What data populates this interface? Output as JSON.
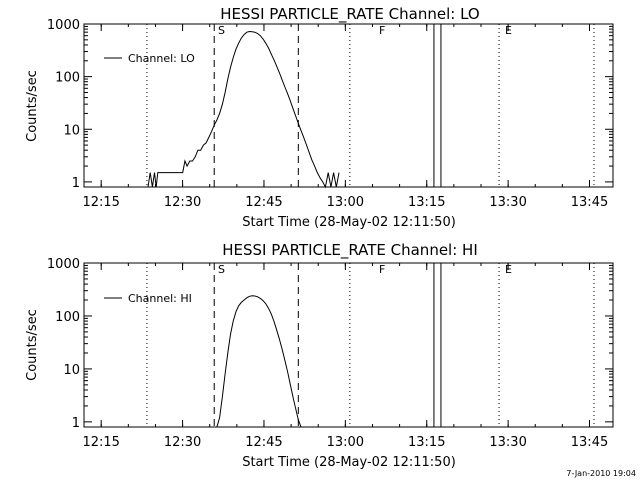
{
  "chart_data": [
    {
      "type": "line",
      "title": "HESSI PARTICLE_RATE Channel: LO",
      "xlabel": "Start Time (28-May-02 12:11:50)",
      "ylabel": "Counts/sec",
      "x_tick_labels": [
        "12:15",
        "12:30",
        "12:45",
        "13:00",
        "13:15",
        "13:30",
        "13:45"
      ],
      "x_tick_minutes": [
        3.17,
        18.17,
        33.17,
        48.17,
        63.17,
        78.17,
        93.17
      ],
      "xlim_minutes": [
        0,
        97.5
      ],
      "y_scale": "log",
      "ylim": [
        0.8,
        1000
      ],
      "y_ticks": [
        1,
        10,
        100,
        1000
      ],
      "y_tick_labels": [
        "1",
        "10",
        "100",
        "1000"
      ],
      "legend": "top-left",
      "series": [
        {
          "name": "Channel: LO",
          "x_minutes": [
            11.8,
            12.2,
            12.6,
            13.0,
            13.3,
            13.6,
            14.0,
            14.4,
            14.8,
            15.2,
            15.6,
            16.0,
            17.0,
            18.2,
            18.6,
            19.0,
            19.5,
            20.0,
            20.5,
            21.0,
            21.5,
            22.0,
            22.5,
            23.0,
            23.5,
            24.0,
            24.5,
            25.0,
            25.5,
            26.0,
            26.5,
            27.0,
            27.5,
            28.0,
            28.5,
            29.0,
            29.5,
            30.0,
            30.5,
            31.0,
            31.5,
            32.0,
            32.5,
            33.0,
            33.5,
            34.0,
            34.5,
            35.0,
            35.5,
            36.0,
            36.5,
            37.0,
            37.5,
            38.0,
            38.5,
            39.0,
            39.5,
            40.0,
            40.5,
            41.0,
            41.5,
            42.0,
            42.5,
            43.0,
            43.5,
            44.0,
            44.5,
            45.0,
            45.5,
            46.0,
            46.5,
            47.0
          ],
          "values": [
            0.8,
            1.5,
            0.8,
            1.5,
            0.8,
            1.5,
            1.5,
            1.5,
            1.5,
            1.5,
            1.5,
            1.5,
            1.5,
            1.5,
            2.5,
            2.0,
            2.5,
            2.5,
            3.0,
            4.0,
            4.0,
            5.0,
            5.5,
            7.0,
            9.0,
            12,
            15,
            20,
            30,
            50,
            90,
            150,
            230,
            330,
            430,
            540,
            630,
            700,
            720,
            710,
            700,
            660,
            600,
            520,
            430,
            350,
            270,
            210,
            160,
            120,
            88,
            65,
            48,
            35,
            25,
            18,
            13,
            9.5,
            7.0,
            5.0,
            3.6,
            2.6,
            2.0,
            1.5,
            1.2,
            1.0,
            0.8,
            1.5,
            0.8,
            1.5,
            0.8,
            1.5
          ]
        }
      ],
      "dashed_lines_minutes": [
        11.6,
        24.0,
        39.5,
        49.0,
        64.5,
        76.5,
        94.0
      ]
    },
    {
      "type": "line",
      "title": "HESSI PARTICLE_RATE Channel: HI",
      "xlabel": "Start Time (28-May-02 12:11:50)",
      "ylabel": "Counts/sec",
      "x_tick_labels": [
        "12:15",
        "12:30",
        "12:45",
        "13:00",
        "13:15",
        "13:30",
        "13:45"
      ],
      "x_tick_minutes": [
        3.17,
        18.17,
        33.17,
        48.17,
        63.17,
        78.17,
        93.17
      ],
      "xlim_minutes": [
        0,
        97.5
      ],
      "y_scale": "log",
      "ylim": [
        0.8,
        1000
      ],
      "y_ticks": [
        1,
        10,
        100,
        1000
      ],
      "y_tick_labels": [
        "1",
        "10",
        "100",
        "1000"
      ],
      "legend": "top-left",
      "series": [
        {
          "name": "Channel: HI",
          "x_minutes": [
            24.5,
            25.0,
            25.5,
            26.0,
            26.5,
            27.0,
            27.5,
            28.0,
            28.5,
            29.0,
            29.5,
            30.0,
            30.5,
            31.0,
            31.5,
            32.0,
            32.5,
            33.0,
            33.5,
            34.0,
            34.5,
            35.0,
            35.5,
            36.0,
            36.5,
            37.0,
            37.5,
            38.0,
            38.5,
            39.0,
            39.5,
            40.0
          ],
          "values": [
            0.8,
            1.2,
            3.0,
            8.0,
            20,
            45,
            80,
            120,
            155,
            180,
            200,
            220,
            235,
            240,
            238,
            230,
            215,
            195,
            170,
            140,
            110,
            80,
            55,
            37,
            24,
            15,
            9,
            5.2,
            3.0,
            1.8,
            1.1,
            0.8
          ]
        }
      ],
      "dashed_lines_minutes": [
        11.6,
        24.0,
        39.5,
        49.0,
        64.5,
        76.5,
        94.0
      ]
    }
  ],
  "markers": [
    "S",
    "F",
    "E"
  ],
  "footer_stamp": "7-Jan-2010 19:04"
}
